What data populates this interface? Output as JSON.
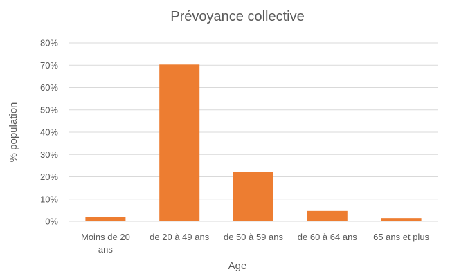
{
  "chart_data": {
    "type": "bar",
    "title": "Prévoyance collective",
    "xlabel": "Age",
    "ylabel": "% population",
    "categories": [
      [
        "Moins de 20",
        "ans"
      ],
      [
        "de 20 à 49 ans"
      ],
      [
        "de 50 à 59 ans"
      ],
      [
        "de 60 à 64 ans"
      ],
      [
        "65 ans et plus"
      ]
    ],
    "values": [
      2,
      70.3,
      22.2,
      4.7,
      1.5
    ],
    "ylim": [
      0,
      80
    ],
    "yticks": [
      "0%",
      "10%",
      "20%",
      "30%",
      "40%",
      "50%",
      "60%",
      "70%",
      "80%"
    ],
    "grid": true,
    "legend": "none",
    "bar_color": "#ED7D31",
    "grid_color": "#D9D9D9"
  }
}
